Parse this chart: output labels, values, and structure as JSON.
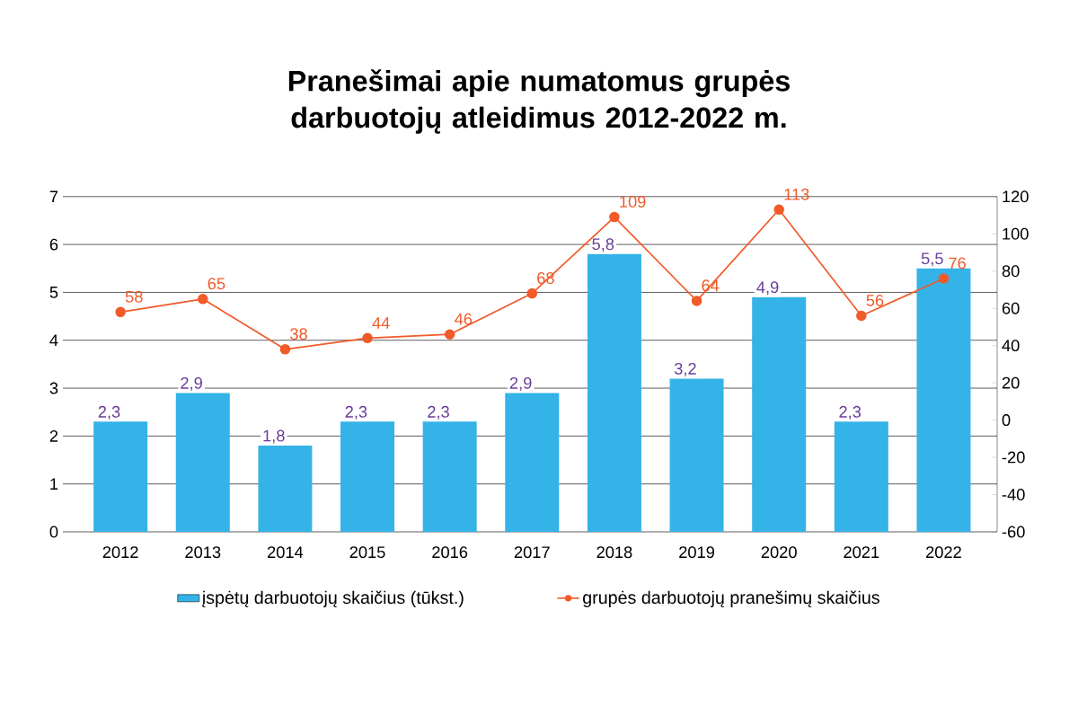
{
  "chart_data": {
    "type": "bar",
    "title": "Pranešimai apie numatomus grupės darbuotojų atleidimus 2012-2022 m.",
    "categories": [
      "2012",
      "2013",
      "2014",
      "2015",
      "2016",
      "2017",
      "2018",
      "2019",
      "2020",
      "2021",
      "2022"
    ],
    "series": [
      {
        "name": "įspėtų darbuotojų skaičius (tūkst.)",
        "color": "#33b3e8",
        "values": [
          2.3,
          2.9,
          1.8,
          2.3,
          2.3,
          2.9,
          5.8,
          3.2,
          4.9,
          2.3,
          5.5
        ],
        "value_labels": [
          "2,3",
          "2,9",
          "1,8",
          "2,3",
          "2,3",
          "2,9",
          "5,8",
          "3,2",
          "4,9",
          "2,3",
          "5,5"
        ]
      },
      {
        "name": "grupės darbuotojų pranešimų skaičius",
        "type": "line",
        "axis": "y2",
        "color": "#f15a29",
        "values": [
          58,
          65,
          38,
          44,
          46,
          68,
          109,
          64,
          113,
          56,
          76
        ]
      }
    ],
    "ylim": [
      0,
      7
    ],
    "yticks": [
      0,
      1,
      2,
      3,
      4,
      5,
      6,
      7
    ],
    "y2lim": [
      -60,
      120
    ],
    "y2ticks": [
      -60,
      -40,
      -20,
      0,
      20,
      40,
      60,
      80,
      100,
      120
    ],
    "data_labels": true,
    "grid": "y",
    "legend": "bottom",
    "marker": "circle",
    "line_style": "solid"
  }
}
